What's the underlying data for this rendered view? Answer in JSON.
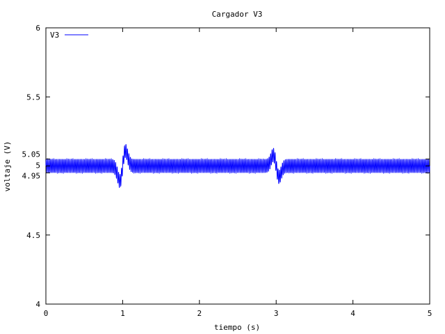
{
  "chart_data": {
    "type": "line",
    "title": "Cargador V3",
    "xlabel": "tiempo (s)",
    "ylabel": "voltaje (V)",
    "xlim": [
      0,
      5
    ],
    "ylim": [
      4,
      6
    ],
    "x_ticks": [
      {
        "value": 0,
        "label": "0"
      },
      {
        "value": 1,
        "label": "1"
      },
      {
        "value": 2,
        "label": "2"
      },
      {
        "value": 3,
        "label": "3"
      },
      {
        "value": 4,
        "label": "4"
      },
      {
        "value": 5,
        "label": "5"
      }
    ],
    "y_ticks": [
      {
        "value": 4,
        "label": "4"
      },
      {
        "value": 4.5,
        "label": "4.5"
      },
      {
        "value": 4.95,
        "label": "4.95"
      },
      {
        "value": 5,
        "label": "5"
      },
      {
        "value": 5.05,
        "label": "5.05"
      },
      {
        "value": 5.5,
        "label": "5.5"
      },
      {
        "value": 6,
        "label": "6"
      }
    ],
    "grid": false,
    "legend_position": "top-left",
    "series": [
      {
        "name": "V3",
        "color": "#0000ff",
        "ripple_min": 4.95,
        "ripple_max": 5.05,
        "transients": [
          {
            "time": 1.0,
            "min": 4.84,
            "max": 5.16
          },
          {
            "time": 3.0,
            "min": 4.87,
            "max": 5.13
          }
        ]
      }
    ]
  }
}
